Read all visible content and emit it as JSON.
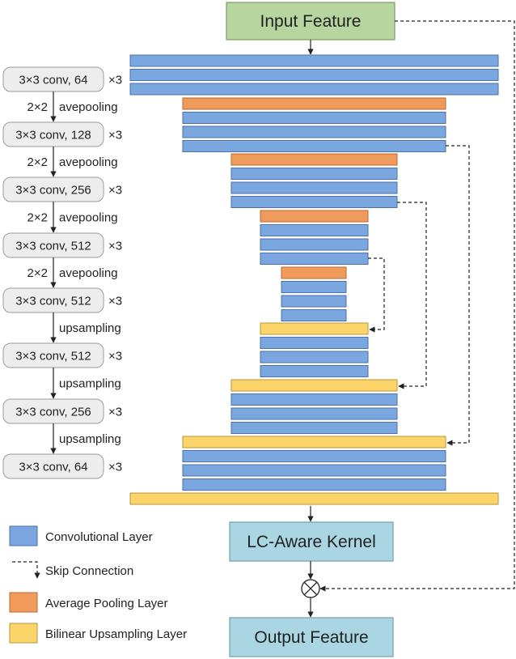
{
  "colors": {
    "conv": "#7BA7E0",
    "conv_stroke": "#4A72A8",
    "pool": "#F09A5C",
    "pool_stroke": "#B86A35",
    "upsample": "#FCD56A",
    "upsample_stroke": "#B8953A",
    "input_fill": "#B7D59E",
    "input_stroke": "#7E9C66",
    "kernel_fill": "#A9D6E2",
    "kernel_stroke": "#6F9FAE",
    "pill_fill": "#EDEDED",
    "pill_stroke": "#9A9A9A",
    "line": "#222222"
  },
  "nodes": {
    "input_feature": "Input Feature",
    "lc_aware_kernel": "LC-Aware Kernel",
    "output_feature": "Output Feature"
  },
  "layer_spec": [
    {
      "label": "3×3 conv, 64",
      "mult": "×3",
      "transition": "2×2",
      "transition_op": "avepooling"
    },
    {
      "label": "3×3 conv, 128",
      "mult": "×3",
      "transition": "2×2",
      "transition_op": "avepooling"
    },
    {
      "label": "3×3 conv, 256",
      "mult": "×3",
      "transition": "2×2",
      "transition_op": "avepooling"
    },
    {
      "label": "3×3 conv, 512",
      "mult": "×3",
      "transition": "2×2",
      "transition_op": "avepooling"
    },
    {
      "label": "3×3 conv, 512",
      "mult": "×3",
      "transition": "",
      "transition_op": "upsampling"
    },
    {
      "label": "3×3 conv, 512",
      "mult": "×3",
      "transition": "",
      "transition_op": "upsampling"
    },
    {
      "label": "3×3 conv, 256",
      "mult": "×3",
      "transition": "",
      "transition_op": "upsampling"
    },
    {
      "label": "3×3 conv, 64",
      "mult": "×3",
      "transition": "",
      "transition_op": ""
    }
  ],
  "legend": [
    {
      "label": "Convolutional Layer",
      "kind": "conv"
    },
    {
      "label": "Skip Connection",
      "kind": "skip"
    },
    {
      "label": "Average Pooling Layer",
      "kind": "pool"
    },
    {
      "label": "Bilinear Upsampling Layer",
      "kind": "upsample"
    }
  ],
  "operator_symbol": "⊗"
}
